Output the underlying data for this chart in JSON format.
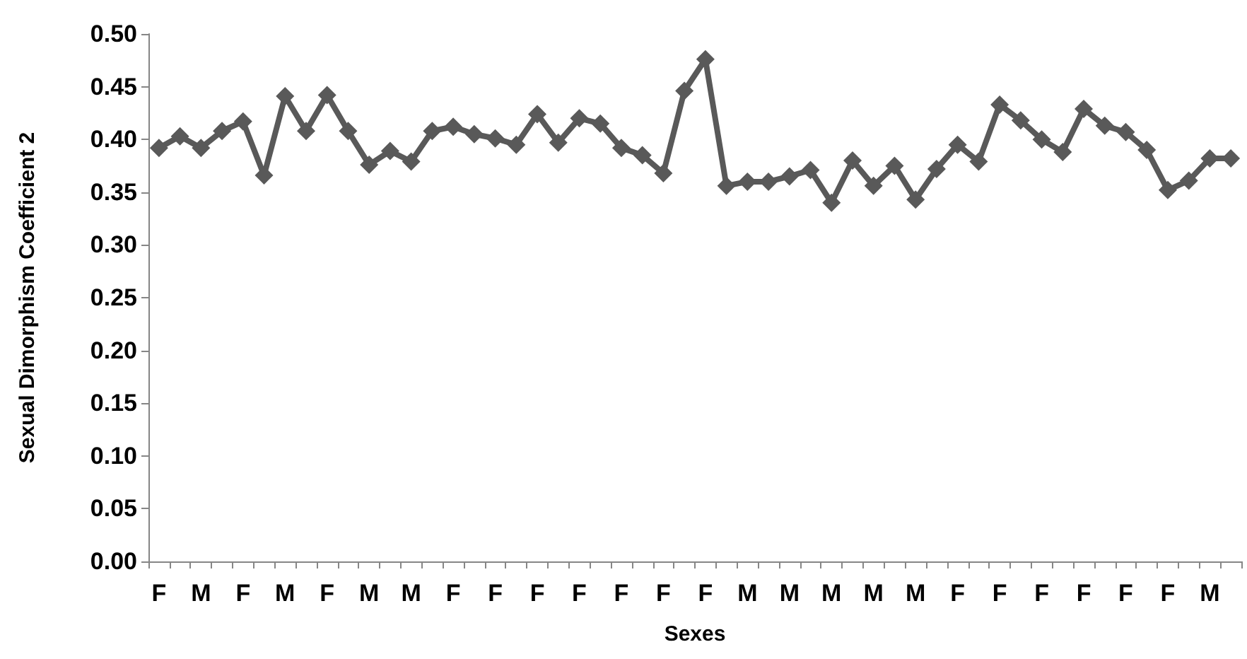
{
  "chart_data": {
    "type": "line",
    "xlabel": "Sexes",
    "ylabel": "Sexual Dimorphism Coefficient 2",
    "categories": [
      "F",
      null,
      "M",
      null,
      "F",
      null,
      "M",
      null,
      "F",
      null,
      "M",
      null,
      "M",
      null,
      "F",
      null,
      "F",
      null,
      "F",
      null,
      "F",
      null,
      "F",
      null,
      "F",
      null,
      "F",
      null,
      "M",
      null,
      "M",
      null,
      "M",
      null,
      "M",
      null,
      "M",
      null,
      "F",
      null,
      "F",
      null,
      "F",
      null,
      "F",
      null,
      "F",
      null,
      "F",
      null,
      "M",
      null
    ],
    "series": [
      {
        "color": "#595959",
        "values": [
          0.392,
          0.403,
          0.392,
          0.408,
          0.417,
          0.366,
          0.441,
          0.408,
          0.442,
          0.408,
          0.376,
          0.389,
          0.379,
          0.408,
          0.412,
          0.405,
          0.401,
          0.395,
          0.424,
          0.397,
          0.42,
          0.415,
          0.392,
          0.385,
          0.368,
          0.446,
          0.476,
          0.356,
          0.36,
          0.36,
          0.365,
          0.371,
          0.34,
          0.38,
          0.356,
          0.375,
          0.343,
          0.372,
          0.395,
          0.379,
          0.433,
          0.418,
          0.4,
          0.388,
          0.429,
          0.413,
          0.407,
          0.39,
          0.352,
          0.361,
          0.382,
          0.382
        ]
      }
    ],
    "ylim": [
      0,
      0.5
    ],
    "yticks": [
      {
        "value": 0,
        "label": "0.00"
      },
      0.05,
      {
        "value": 0.1,
        "label": "0.10"
      },
      0.15,
      {
        "value": 0.2,
        "label": "0.20"
      },
      0.25,
      {
        "value": 0.3,
        "label": "0.30"
      },
      0.35,
      {
        "value": 0.4,
        "label": "0.40"
      },
      0.45,
      {
        "value": 0.5,
        "label": "0.50"
      }
    ],
    "grid": false,
    "marker": "diamond",
    "line_style": "solid"
  }
}
